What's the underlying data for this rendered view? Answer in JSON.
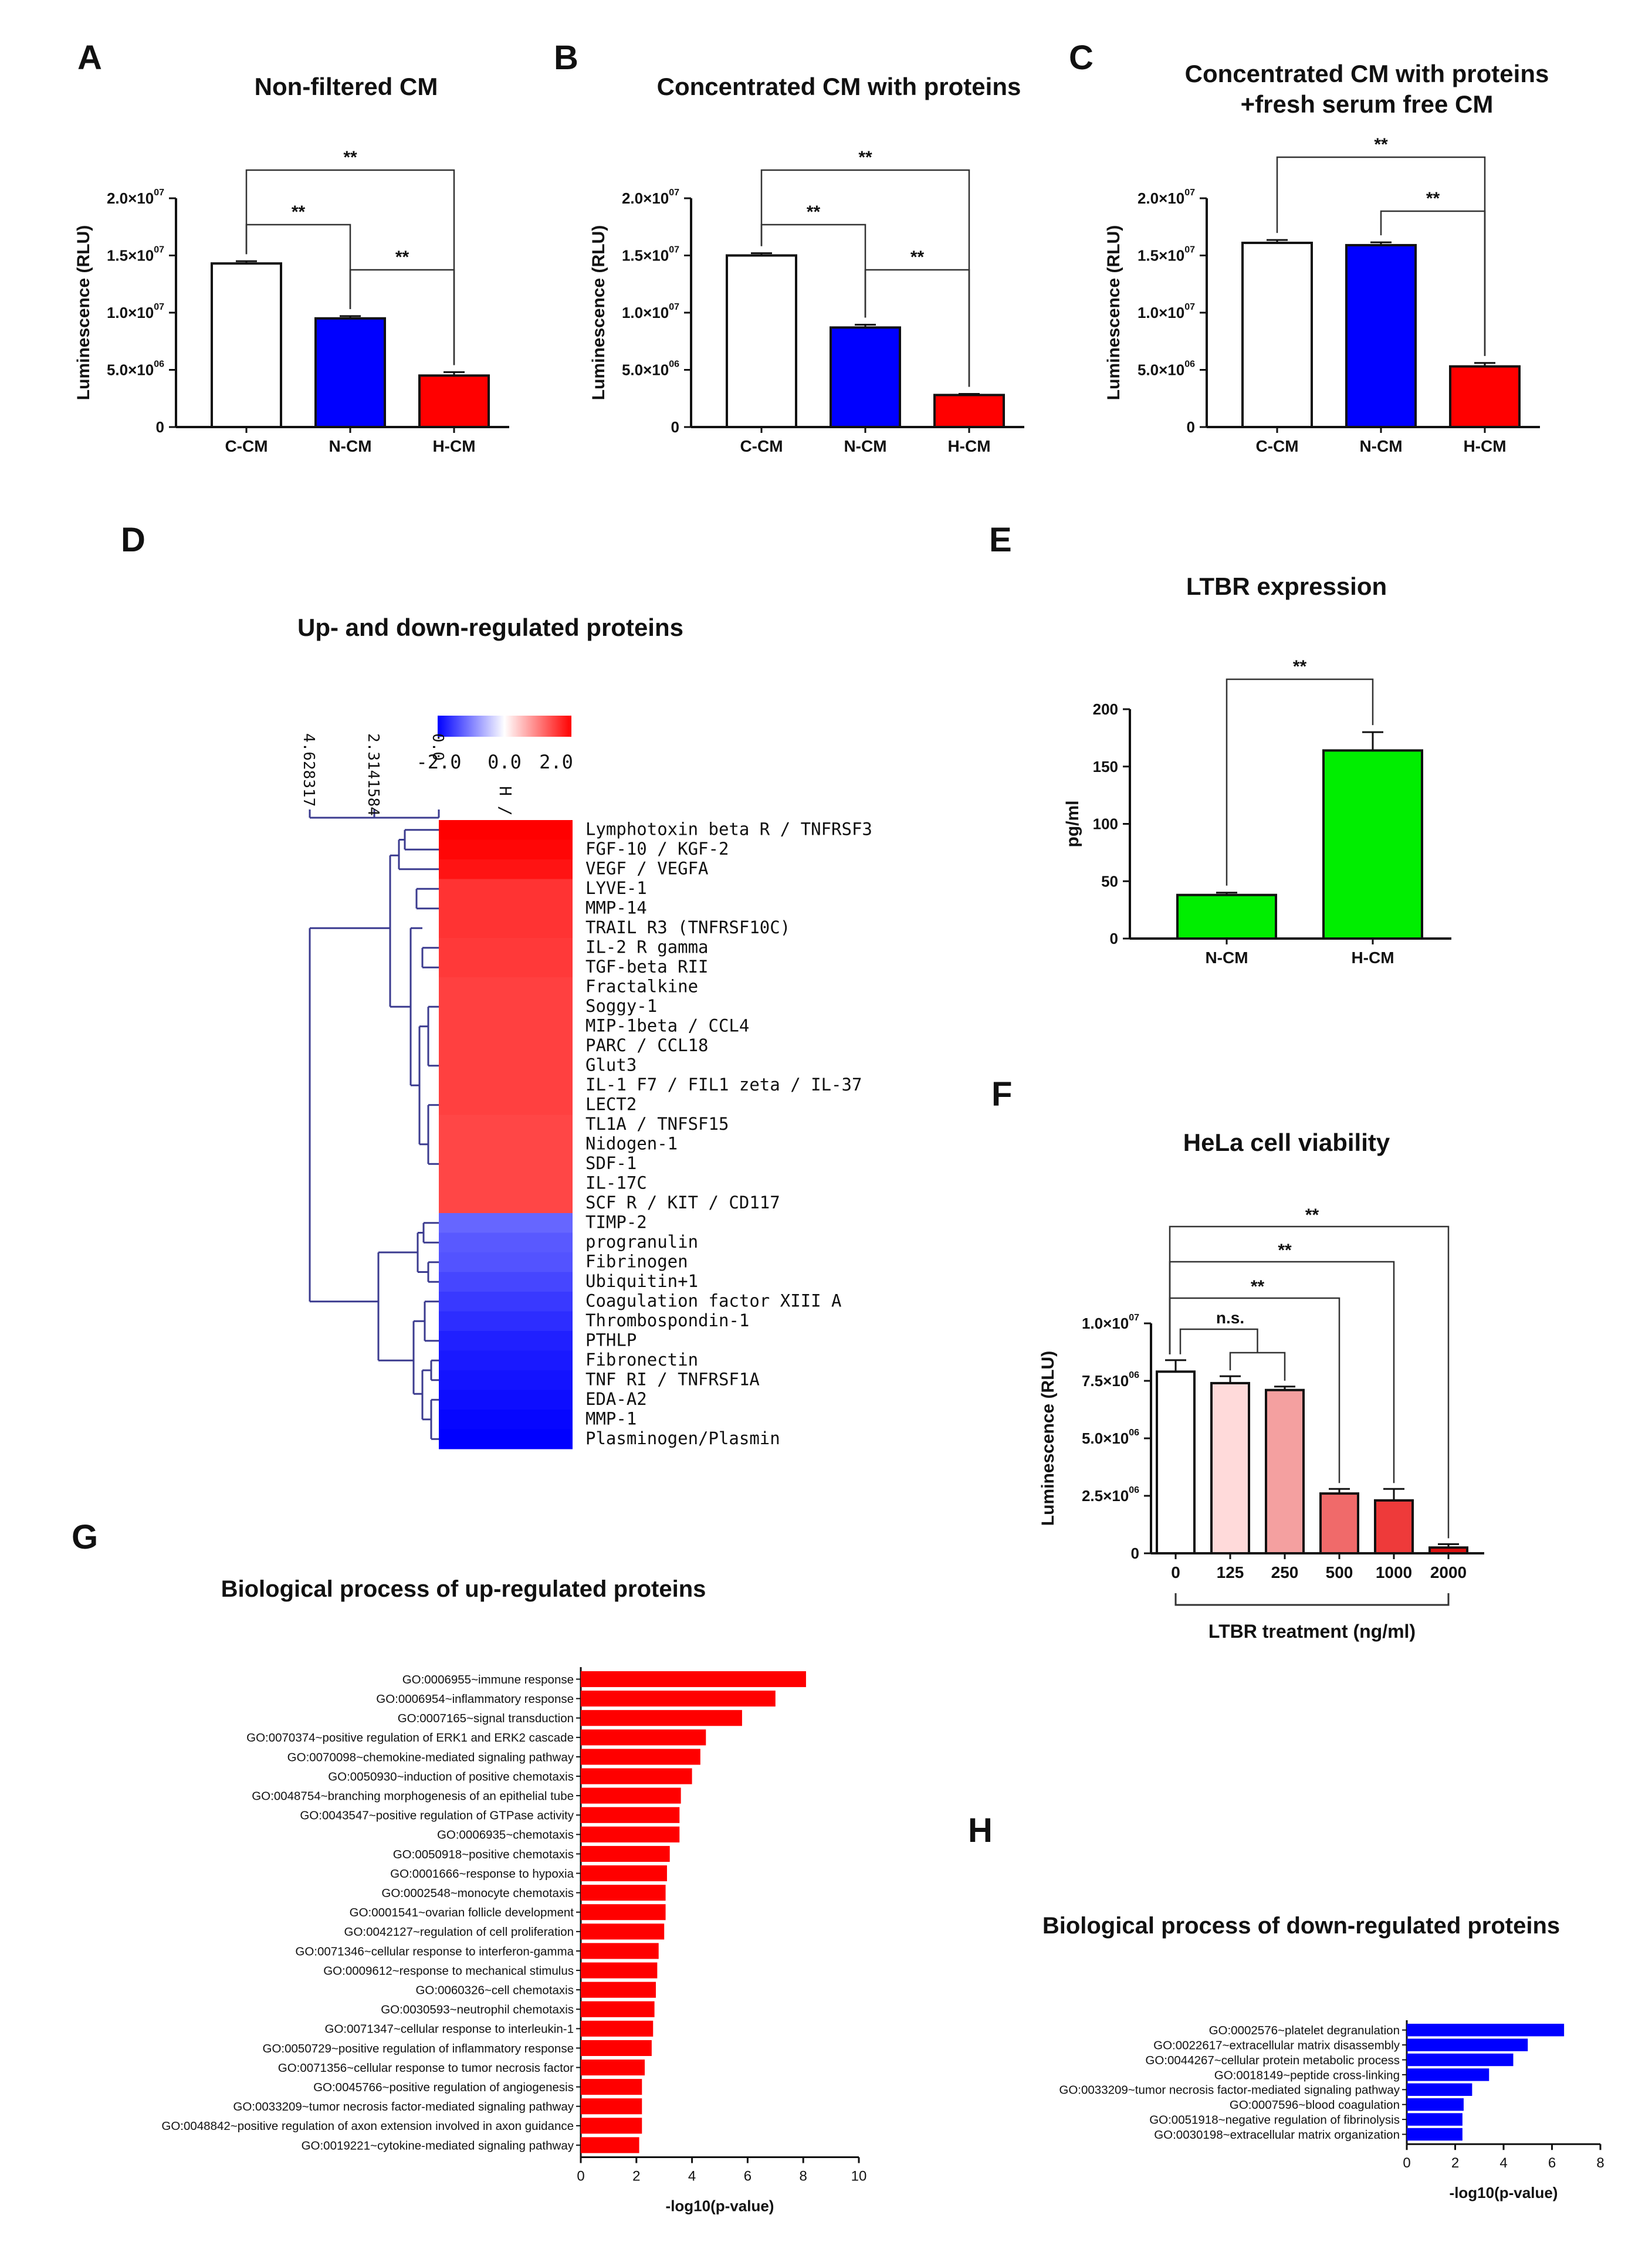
{
  "colors": {
    "white": "#ffffff",
    "blue": "#0000ff",
    "red": "#ff0000",
    "green": "#00ee00",
    "light_pink": "#ffdada",
    "mid_pink": "#f4a0a0",
    "red_light": "#f06a6a",
    "red_mid": "#ee3a3a",
    "red_dark": "#dd1111",
    "dendrogram": "#3b3b8f"
  },
  "chart_data": [
    {
      "id": "A",
      "type": "bar",
      "panel_letter": "A",
      "title": "Non-filtered  CM",
      "ylabel": "Luminescence (RLU)",
      "xlabel": "",
      "categories": [
        "C-CM",
        "N-CM",
        "H-CM"
      ],
      "values": [
        14300000,
        9500000,
        4500000
      ],
      "errors": [
        200000,
        200000,
        300000
      ],
      "bar_colors": [
        "white",
        "blue",
        "red"
      ],
      "ylim": [
        0,
        20000000
      ],
      "yticks": [
        0,
        5000000,
        10000000,
        15000000,
        20000000
      ],
      "ytick_labels": [
        {
          "m": "0",
          "e": ""
        },
        {
          "m": "5.0×10",
          "e": "06"
        },
        {
          "m": "1.0×10",
          "e": "07"
        },
        {
          "m": "1.5×10",
          "e": "07"
        },
        {
          "m": "2.0×10",
          "e": "07"
        }
      ],
      "brackets": [
        {
          "from": 0,
          "to": 2,
          "level": 3,
          "label": "**"
        },
        {
          "from": 0,
          "to": 1,
          "level": 1,
          "label": "**"
        },
        {
          "from": 1,
          "to": 2,
          "level": 2,
          "label": "**"
        }
      ]
    },
    {
      "id": "B",
      "type": "bar",
      "panel_letter": "B",
      "title": "Concentrated CM with proteins",
      "ylabel": "Luminescence (RLU)",
      "xlabel": "",
      "categories": [
        "C-CM",
        "N-CM",
        "H-CM"
      ],
      "values": [
        15000000,
        8700000,
        2800000
      ],
      "errors": [
        200000,
        250000,
        100000
      ],
      "bar_colors": [
        "white",
        "blue",
        "red"
      ],
      "ylim": [
        0,
        20000000
      ],
      "yticks": [
        0,
        5000000,
        10000000,
        15000000,
        20000000
      ],
      "ytick_labels": [
        {
          "m": "0",
          "e": ""
        },
        {
          "m": "5.0×10",
          "e": "06"
        },
        {
          "m": "1.0×10",
          "e": "07"
        },
        {
          "m": "1.5×10",
          "e": "07"
        },
        {
          "m": "2.0×10",
          "e": "07"
        }
      ],
      "brackets": [
        {
          "from": 0,
          "to": 2,
          "level": 3,
          "label": "**"
        },
        {
          "from": 0,
          "to": 1,
          "level": 1,
          "label": "**"
        },
        {
          "from": 1,
          "to": 2,
          "level": 2,
          "label": "**"
        }
      ]
    },
    {
      "id": "C",
      "type": "bar",
      "panel_letter": "C",
      "title_lines": [
        "Concentrated CM with proteins",
        "+fresh serum free CM"
      ],
      "ylabel": "Luminescence (RLU)",
      "xlabel": "",
      "categories": [
        "C-CM",
        "N-CM",
        "H-CM"
      ],
      "values": [
        16100000,
        15900000,
        5300000
      ],
      "errors": [
        250000,
        250000,
        300000
      ],
      "bar_colors": [
        "white",
        "blue",
        "red"
      ],
      "ylim": [
        0,
        20000000
      ],
      "yticks": [
        0,
        5000000,
        10000000,
        15000000,
        20000000
      ],
      "ytick_labels": [
        {
          "m": "0",
          "e": ""
        },
        {
          "m": "5.0×10",
          "e": "06"
        },
        {
          "m": "1.0×10",
          "e": "07"
        },
        {
          "m": "1.5×10",
          "e": "07"
        },
        {
          "m": "2.0×10",
          "e": "07"
        }
      ],
      "brackets": [
        {
          "from": 0,
          "to": 2,
          "level": 3,
          "label": "**"
        },
        {
          "from": 1,
          "to": 2,
          "level": 2,
          "label": "**"
        }
      ]
    },
    {
      "id": "D",
      "type": "heatmap",
      "panel_letter": "D",
      "title": "Up- and down-regulated proteins",
      "column_label": "H / N",
      "scale": {
        "min": -2.0,
        "max": 2.0,
        "tick_labels": [
          "-2.0",
          "0.0",
          "2.0"
        ]
      },
      "dendrogram_scale_labels": [
        "4.628317",
        "2.3141584",
        "0.0"
      ],
      "rows": [
        {
          "label": "Lymphotoxin beta R / TNFRSF3",
          "value": 2.0
        },
        {
          "label": "FGF-10 / KGF-2",
          "value": 1.95
        },
        {
          "label": "VEGF / VEGFA",
          "value": 1.85
        },
        {
          "label": "LYVE-1",
          "value": 1.6
        },
        {
          "label": "MMP-14",
          "value": 1.6
        },
        {
          "label": "TRAIL R3 (TNFRSF10C)",
          "value": 1.6
        },
        {
          "label": "IL-2 R gamma",
          "value": 1.55
        },
        {
          "label": "TGF-beta RII",
          "value": 1.55
        },
        {
          "label": "Fractalkine",
          "value": 1.5
        },
        {
          "label": "Soggy-1",
          "value": 1.5
        },
        {
          "label": "MIP-1beta / CCL4",
          "value": 1.5
        },
        {
          "label": "PARC / CCL18",
          "value": 1.5
        },
        {
          "label": "Glut3",
          "value": 1.5
        },
        {
          "label": "IL-1 F7 / FIL1 zeta / IL-37",
          "value": 1.5
        },
        {
          "label": "LECT2",
          "value": 1.5
        },
        {
          "label": "TL1A / TNFSF15",
          "value": 1.45
        },
        {
          "label": "Nidogen-1",
          "value": 1.45
        },
        {
          "label": "SDF-1",
          "value": 1.45
        },
        {
          "label": "IL-17C",
          "value": 1.45
        },
        {
          "label": "SCF R / KIT / CD117",
          "value": 1.45
        },
        {
          "label": "TIMP-2",
          "value": -1.2
        },
        {
          "label": "progranulin",
          "value": -1.3
        },
        {
          "label": "Fibrinogen",
          "value": -1.35
        },
        {
          "label": "Ubiquitin+1",
          "value": -1.45
        },
        {
          "label": "Coagulation factor XIII A",
          "value": -1.55
        },
        {
          "label": "Thrombospondin-1",
          "value": -1.65
        },
        {
          "label": "PTHLP",
          "value": -1.75
        },
        {
          "label": "Fibronectin",
          "value": -1.8
        },
        {
          "label": "TNF RI / TNFRSF1A",
          "value": -1.85
        },
        {
          "label": "EDA-A2",
          "value": -1.9
        },
        {
          "label": "MMP-1",
          "value": -1.95
        },
        {
          "label": "Plasminogen/Plasmin",
          "value": -2.0
        }
      ]
    },
    {
      "id": "E",
      "type": "bar",
      "panel_letter": "E",
      "title": "LTBR expression",
      "ylabel": "pg/ml",
      "xlabel": "",
      "categories": [
        "N-CM",
        "H-CM"
      ],
      "values": [
        38,
        164
      ],
      "errors": [
        2,
        16
      ],
      "bar_colors": [
        "green",
        "green"
      ],
      "ylim": [
        0,
        200
      ],
      "yticks": [
        0,
        50,
        100,
        150,
        200
      ],
      "ytick_labels": [
        {
          "m": "0",
          "e": ""
        },
        {
          "m": "50",
          "e": ""
        },
        {
          "m": "100",
          "e": ""
        },
        {
          "m": "150",
          "e": ""
        },
        {
          "m": "200",
          "e": ""
        }
      ],
      "brackets": [
        {
          "from": 0,
          "to": 1,
          "level": 1,
          "label": "**"
        }
      ]
    },
    {
      "id": "F",
      "type": "bar",
      "panel_letter": "F",
      "title": "HeLa cell viability",
      "ylabel": "Luminescence (RLU)",
      "xlabel": "LTBR treatment (ng/ml)",
      "categories": [
        "0",
        "125",
        "250",
        "500",
        "1000",
        "2000"
      ],
      "values": [
        7900000,
        7400000,
        7100000,
        2600000,
        2300000,
        250000
      ],
      "errors": [
        500000,
        300000,
        150000,
        200000,
        500000,
        150000
      ],
      "bar_colors": [
        "white",
        "light_pink",
        "mid_pink",
        "red_light",
        "red_mid",
        "red_dark"
      ],
      "ylim": [
        0,
        10000000
      ],
      "yticks": [
        0,
        2500000,
        5000000,
        7500000,
        10000000
      ],
      "ytick_labels": [
        {
          "m": "0",
          "e": ""
        },
        {
          "m": "2.5×10",
          "e": "06"
        },
        {
          "m": "5.0×10",
          "e": "06"
        },
        {
          "m": "7.5×10",
          "e": "06"
        },
        {
          "m": "1.0×10",
          "e": "07"
        }
      ],
      "ns_label": "n.s.",
      "sig_label": "**"
    },
    {
      "id": "G",
      "type": "bar",
      "orientation": "horizontal",
      "panel_letter": "G",
      "title": "Biological process of  up-regulated proteins",
      "xlabel": "-log10(p-value)",
      "xlim": [
        0,
        10
      ],
      "xticks": [
        0,
        2,
        4,
        6,
        8,
        10
      ],
      "bar_color": "red",
      "categories": [
        "GO:0006955~immune response",
        "GO:0006954~inflammatory response",
        "GO:0007165~signal transduction",
        "GO:0070374~positive regulation of ERK1 and ERK2 cascade",
        "GO:0070098~chemokine-mediated signaling pathway",
        "GO:0050930~induction of positive chemotaxis",
        "GO:0048754~branching morphogenesis of an epithelial tube",
        "GO:0043547~positive regulation of GTPase activity",
        "GO:0006935~chemotaxis",
        "GO:0050918~positive chemotaxis",
        "GO:0001666~response to hypoxia",
        "GO:0002548~monocyte chemotaxis",
        "GO:0001541~ovarian follicle development",
        "GO:0042127~regulation of cell proliferation",
        "GO:0071346~cellular response to interferon-gamma",
        "GO:0009612~response to mechanical stimulus",
        "GO:0060326~cell chemotaxis",
        "GO:0030593~neutrophil chemotaxis",
        "GO:0071347~cellular response to interleukin-1",
        "GO:0050729~positive regulation of inflammatory response",
        "GO:0071356~cellular response to tumor necrosis factor",
        "GO:0045766~positive regulation of angiogenesis",
        "GO:0033209~tumor necrosis factor-mediated signaling pathway",
        "GO:0048842~positive regulation of axon extension involved in axon guidance",
        "GO:0019221~cytokine-mediated signaling pathway"
      ],
      "values": [
        8.1,
        7.0,
        5.8,
        4.5,
        4.3,
        4.0,
        3.6,
        3.55,
        3.55,
        3.2,
        3.1,
        3.05,
        3.05,
        3.0,
        2.8,
        2.75,
        2.7,
        2.65,
        2.6,
        2.55,
        2.3,
        2.2,
        2.2,
        2.2,
        2.1
      ]
    },
    {
      "id": "H",
      "type": "bar",
      "orientation": "horizontal",
      "panel_letter": "H",
      "title": "Biological process of  down-regulated proteins",
      "xlabel": "-log10(p-value)",
      "xlim": [
        0,
        8
      ],
      "xticks": [
        0,
        2,
        4,
        6,
        8
      ],
      "bar_color": "blue",
      "categories": [
        "GO:0002576~platelet degranulation",
        "GO:0022617~extracellular matrix disassembly",
        "GO:0044267~cellular protein metabolic process",
        "GO:0018149~peptide cross-linking",
        "GO:0033209~tumor necrosis factor-mediated signaling pathway",
        "GO:0007596~blood coagulation",
        "GO:0051918~negative regulation of fibrinolysis",
        "GO:0030198~extracellular matrix organization"
      ],
      "values": [
        6.5,
        5.0,
        4.4,
        3.4,
        2.7,
        2.35,
        2.3,
        2.3
      ]
    }
  ]
}
